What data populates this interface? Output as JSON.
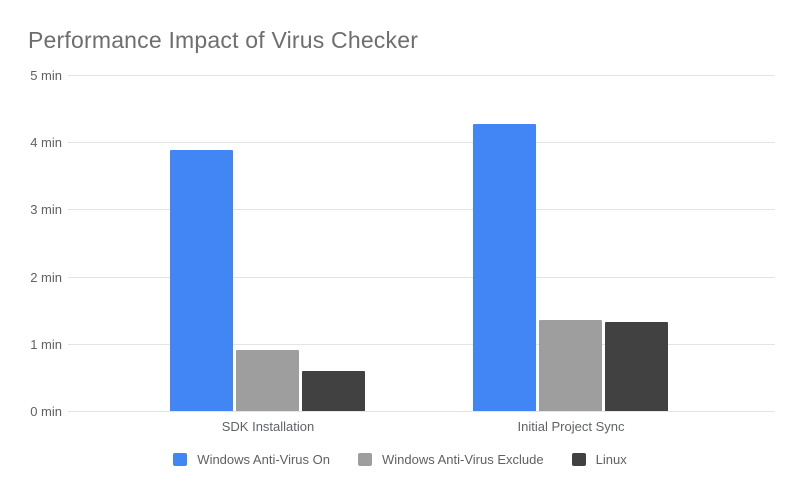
{
  "colors": {
    "series_blue": "#4285f4",
    "series_gray": "#9e9e9e",
    "series_dark": "#414141",
    "gridline": "#e4e4e4",
    "axis_text": "#616161",
    "title_text": "#6e6e6e",
    "background": "#ffffff"
  },
  "chart_data": {
    "type": "bar",
    "title": "Performance Impact of Virus Checker",
    "categories": [
      "SDK Installation",
      "Initial Project Sync"
    ],
    "series": [
      {
        "name": "Windows Anti-Virus On",
        "color": "#4285f4",
        "values": [
          3.88,
          4.27
        ]
      },
      {
        "name": "Windows Anti-Virus Exclude",
        "color": "#9e9e9e",
        "values": [
          0.91,
          1.35
        ]
      },
      {
        "name": "Linux",
        "color": "#414141",
        "values": [
          0.6,
          1.32
        ]
      }
    ],
    "xlabel": "",
    "ylabel": "",
    "ylim": [
      0,
      5
    ],
    "yticks": [
      {
        "value": 5,
        "label": "5 min"
      },
      {
        "value": 4,
        "label": "4 min"
      },
      {
        "value": 3,
        "label": "3 min"
      },
      {
        "value": 2,
        "label": "2 min"
      },
      {
        "value": 1,
        "label": "1 min"
      },
      {
        "value": 0,
        "label": "0 min"
      }
    ],
    "grid": true,
    "legend_position": "bottom"
  }
}
